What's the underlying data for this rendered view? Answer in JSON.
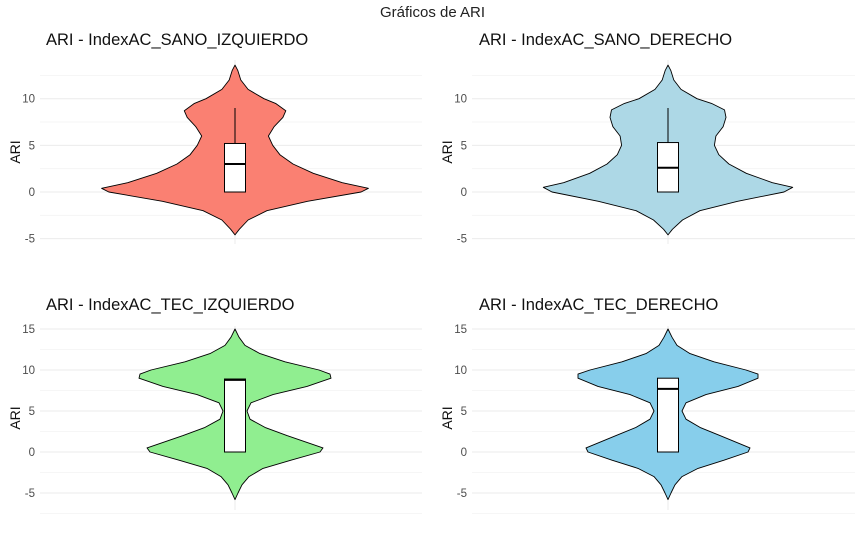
{
  "figure": {
    "title": "Gráficos de ARI"
  },
  "chart_data": [
    {
      "type": "violin",
      "title": "ARI - IndexAC_SANO_IZQUIERDO",
      "ylabel": "ARI",
      "xlabel": "",
      "fill_color": "#fa8072",
      "ylim": [
        -5,
        13.5
      ],
      "yticks": [
        -5,
        0,
        5,
        10
      ],
      "grid": true,
      "density_range": [
        -4.6,
        13.6
      ],
      "density": [
        [
          -4.6,
          0.0
        ],
        [
          -4,
          0.03
        ],
        [
          -3,
          0.09
        ],
        [
          -2,
          0.22
        ],
        [
          -1,
          0.5
        ],
        [
          0,
          0.87
        ],
        [
          0.4,
          0.92
        ],
        [
          1,
          0.74
        ],
        [
          2,
          0.54
        ],
        [
          3,
          0.4
        ],
        [
          4,
          0.31
        ],
        [
          5,
          0.26
        ],
        [
          6,
          0.23
        ],
        [
          7,
          0.27
        ],
        [
          8,
          0.33
        ],
        [
          8.7,
          0.35
        ],
        [
          9.5,
          0.28
        ],
        [
          10,
          0.2
        ],
        [
          11,
          0.09
        ],
        [
          12,
          0.04
        ],
        [
          13,
          0.02
        ],
        [
          13.6,
          0.0
        ]
      ],
      "boxplot": {
        "min": 0,
        "q1": 0,
        "median": 3,
        "q3": 5.2,
        "max": 9
      }
    },
    {
      "type": "violin",
      "title": "ARI - IndexAC_SANO_DERECHO",
      "ylabel": "ARI",
      "xlabel": "",
      "fill_color": "#add8e6",
      "ylim": [
        -5,
        13.5
      ],
      "yticks": [
        -5,
        0,
        5,
        10
      ],
      "grid": true,
      "density_range": [
        -4.6,
        13.6
      ],
      "density": [
        [
          -4.6,
          0.0
        ],
        [
          -4,
          0.03
        ],
        [
          -3,
          0.1
        ],
        [
          -2,
          0.22
        ],
        [
          -1,
          0.48
        ],
        [
          0,
          0.8
        ],
        [
          0.5,
          0.86
        ],
        [
          1,
          0.72
        ],
        [
          2,
          0.54
        ],
        [
          3,
          0.42
        ],
        [
          4,
          0.35
        ],
        [
          5,
          0.32
        ],
        [
          6,
          0.33
        ],
        [
          7,
          0.38
        ],
        [
          8,
          0.4
        ],
        [
          8.8,
          0.39
        ],
        [
          9.5,
          0.3
        ],
        [
          10,
          0.2
        ],
        [
          11,
          0.09
        ],
        [
          12,
          0.04
        ],
        [
          13,
          0.02
        ],
        [
          13.6,
          0.0
        ]
      ],
      "boxplot": {
        "min": 0,
        "q1": 0,
        "median": 2.6,
        "q3": 5.3,
        "max": 9
      }
    },
    {
      "type": "violin",
      "title": "ARI - IndexAC_TEC_IZQUIERDO",
      "ylabel": "ARI",
      "xlabel": "",
      "fill_color": "#90ee90",
      "ylim": [
        -6,
        15
      ],
      "yticks": [
        -5,
        0,
        5,
        10,
        15
      ],
      "grid": true,
      "density_range": [
        -5.8,
        15
      ],
      "density": [
        [
          -5.8,
          0.0
        ],
        [
          -5,
          0.03
        ],
        [
          -4,
          0.07
        ],
        [
          -3,
          0.14
        ],
        [
          -2,
          0.28
        ],
        [
          -1,
          0.56
        ],
        [
          0,
          0.85
        ],
        [
          0.5,
          0.88
        ],
        [
          1,
          0.76
        ],
        [
          2,
          0.52
        ],
        [
          3,
          0.3
        ],
        [
          4,
          0.15
        ],
        [
          5,
          0.12
        ],
        [
          6,
          0.16
        ],
        [
          7,
          0.38
        ],
        [
          8,
          0.72
        ],
        [
          9,
          0.96
        ],
        [
          9.5,
          0.95
        ],
        [
          10,
          0.84
        ],
        [
          11,
          0.5
        ],
        [
          12,
          0.25
        ],
        [
          13,
          0.1
        ],
        [
          14,
          0.04
        ],
        [
          15,
          0.0
        ]
      ],
      "boxplot": {
        "min": 0,
        "q1": 0,
        "median": 8.8,
        "q3": 8.9,
        "max": 8.9
      }
    },
    {
      "type": "violin",
      "title": "ARI - IndexAC_TEC_DERECHO",
      "ylabel": "ARI",
      "xlabel": "",
      "fill_color": "#87ceeb",
      "ylim": [
        -6,
        15
      ],
      "yticks": [
        -5,
        0,
        5,
        10,
        15
      ],
      "grid": true,
      "density_range": [
        -5.8,
        15
      ],
      "density": [
        [
          -5.8,
          0.0
        ],
        [
          -5,
          0.03
        ],
        [
          -4,
          0.07
        ],
        [
          -3,
          0.14
        ],
        [
          -2,
          0.3
        ],
        [
          -1,
          0.56
        ],
        [
          0,
          0.8
        ],
        [
          0.5,
          0.82
        ],
        [
          1,
          0.72
        ],
        [
          2,
          0.52
        ],
        [
          3,
          0.32
        ],
        [
          4,
          0.18
        ],
        [
          5,
          0.14
        ],
        [
          6,
          0.18
        ],
        [
          7,
          0.38
        ],
        [
          8,
          0.7
        ],
        [
          9,
          0.9
        ],
        [
          9.5,
          0.9
        ],
        [
          10,
          0.78
        ],
        [
          11,
          0.46
        ],
        [
          12,
          0.22
        ],
        [
          13,
          0.09
        ],
        [
          14,
          0.04
        ],
        [
          15,
          0.0
        ]
      ],
      "boxplot": {
        "min": 0,
        "q1": 0,
        "median": 7.7,
        "q3": 9,
        "max": 9
      }
    }
  ]
}
